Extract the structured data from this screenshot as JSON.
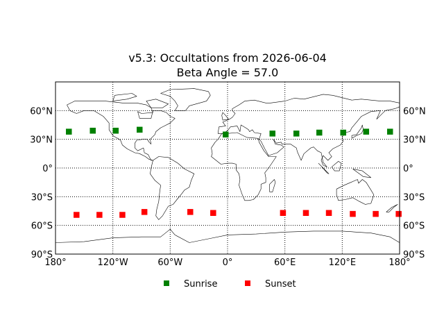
{
  "chart_data": {
    "type": "scatter",
    "title": "v5.3: Occultations from 2026-06-04",
    "subtitle": "Beta Angle = 57.0",
    "xlim": [
      -180,
      180
    ],
    "ylim": [
      -90,
      90
    ],
    "grid": true,
    "grid_style": "dotted",
    "basemap": "world coastlines and country borders",
    "x_ticks": [
      {
        "value": -180,
        "label": "180°"
      },
      {
        "value": -120,
        "label": "120°W"
      },
      {
        "value": -60,
        "label": "60°W"
      },
      {
        "value": 0,
        "label": "0°"
      },
      {
        "value": 60,
        "label": "60°E"
      },
      {
        "value": 120,
        "label": "120°E"
      },
      {
        "value": 180,
        "label": "180°"
      }
    ],
    "y_ticks": [
      {
        "value": 60,
        "label": "60°N"
      },
      {
        "value": 30,
        "label": "30°N"
      },
      {
        "value": 0,
        "label": "0°"
      },
      {
        "value": -30,
        "label": "30°S"
      },
      {
        "value": -60,
        "label": "60°S"
      },
      {
        "value": -90,
        "label": "90°S"
      }
    ],
    "legend_position": "bottom-center",
    "series": [
      {
        "name": "Sunrise",
        "color": "#008000",
        "marker": "square",
        "points": [
          {
            "x": -166,
            "y": 38
          },
          {
            "x": -141,
            "y": 39
          },
          {
            "x": -117,
            "y": 39
          },
          {
            "x": -92,
            "y": 40
          },
          {
            "x": -2,
            "y": 35
          },
          {
            "x": 47,
            "y": 36
          },
          {
            "x": 72,
            "y": 36
          },
          {
            "x": 96,
            "y": 37
          },
          {
            "x": 121,
            "y": 37
          },
          {
            "x": 145,
            "y": 38
          },
          {
            "x": 170,
            "y": 38
          }
        ]
      },
      {
        "name": "Sunset",
        "color": "#ff0000",
        "marker": "square",
        "points": [
          {
            "x": -158,
            "y": -49
          },
          {
            "x": -134,
            "y": -49
          },
          {
            "x": -110,
            "y": -49
          },
          {
            "x": -87,
            "y": -46
          },
          {
            "x": -39,
            "y": -46
          },
          {
            "x": -15,
            "y": -47
          },
          {
            "x": 58,
            "y": -47
          },
          {
            "x": 82,
            "y": -47
          },
          {
            "x": 106,
            "y": -47
          },
          {
            "x": 131,
            "y": -48
          },
          {
            "x": 155,
            "y": -48
          },
          {
            "x": 179,
            "y": -48
          }
        ]
      }
    ]
  }
}
